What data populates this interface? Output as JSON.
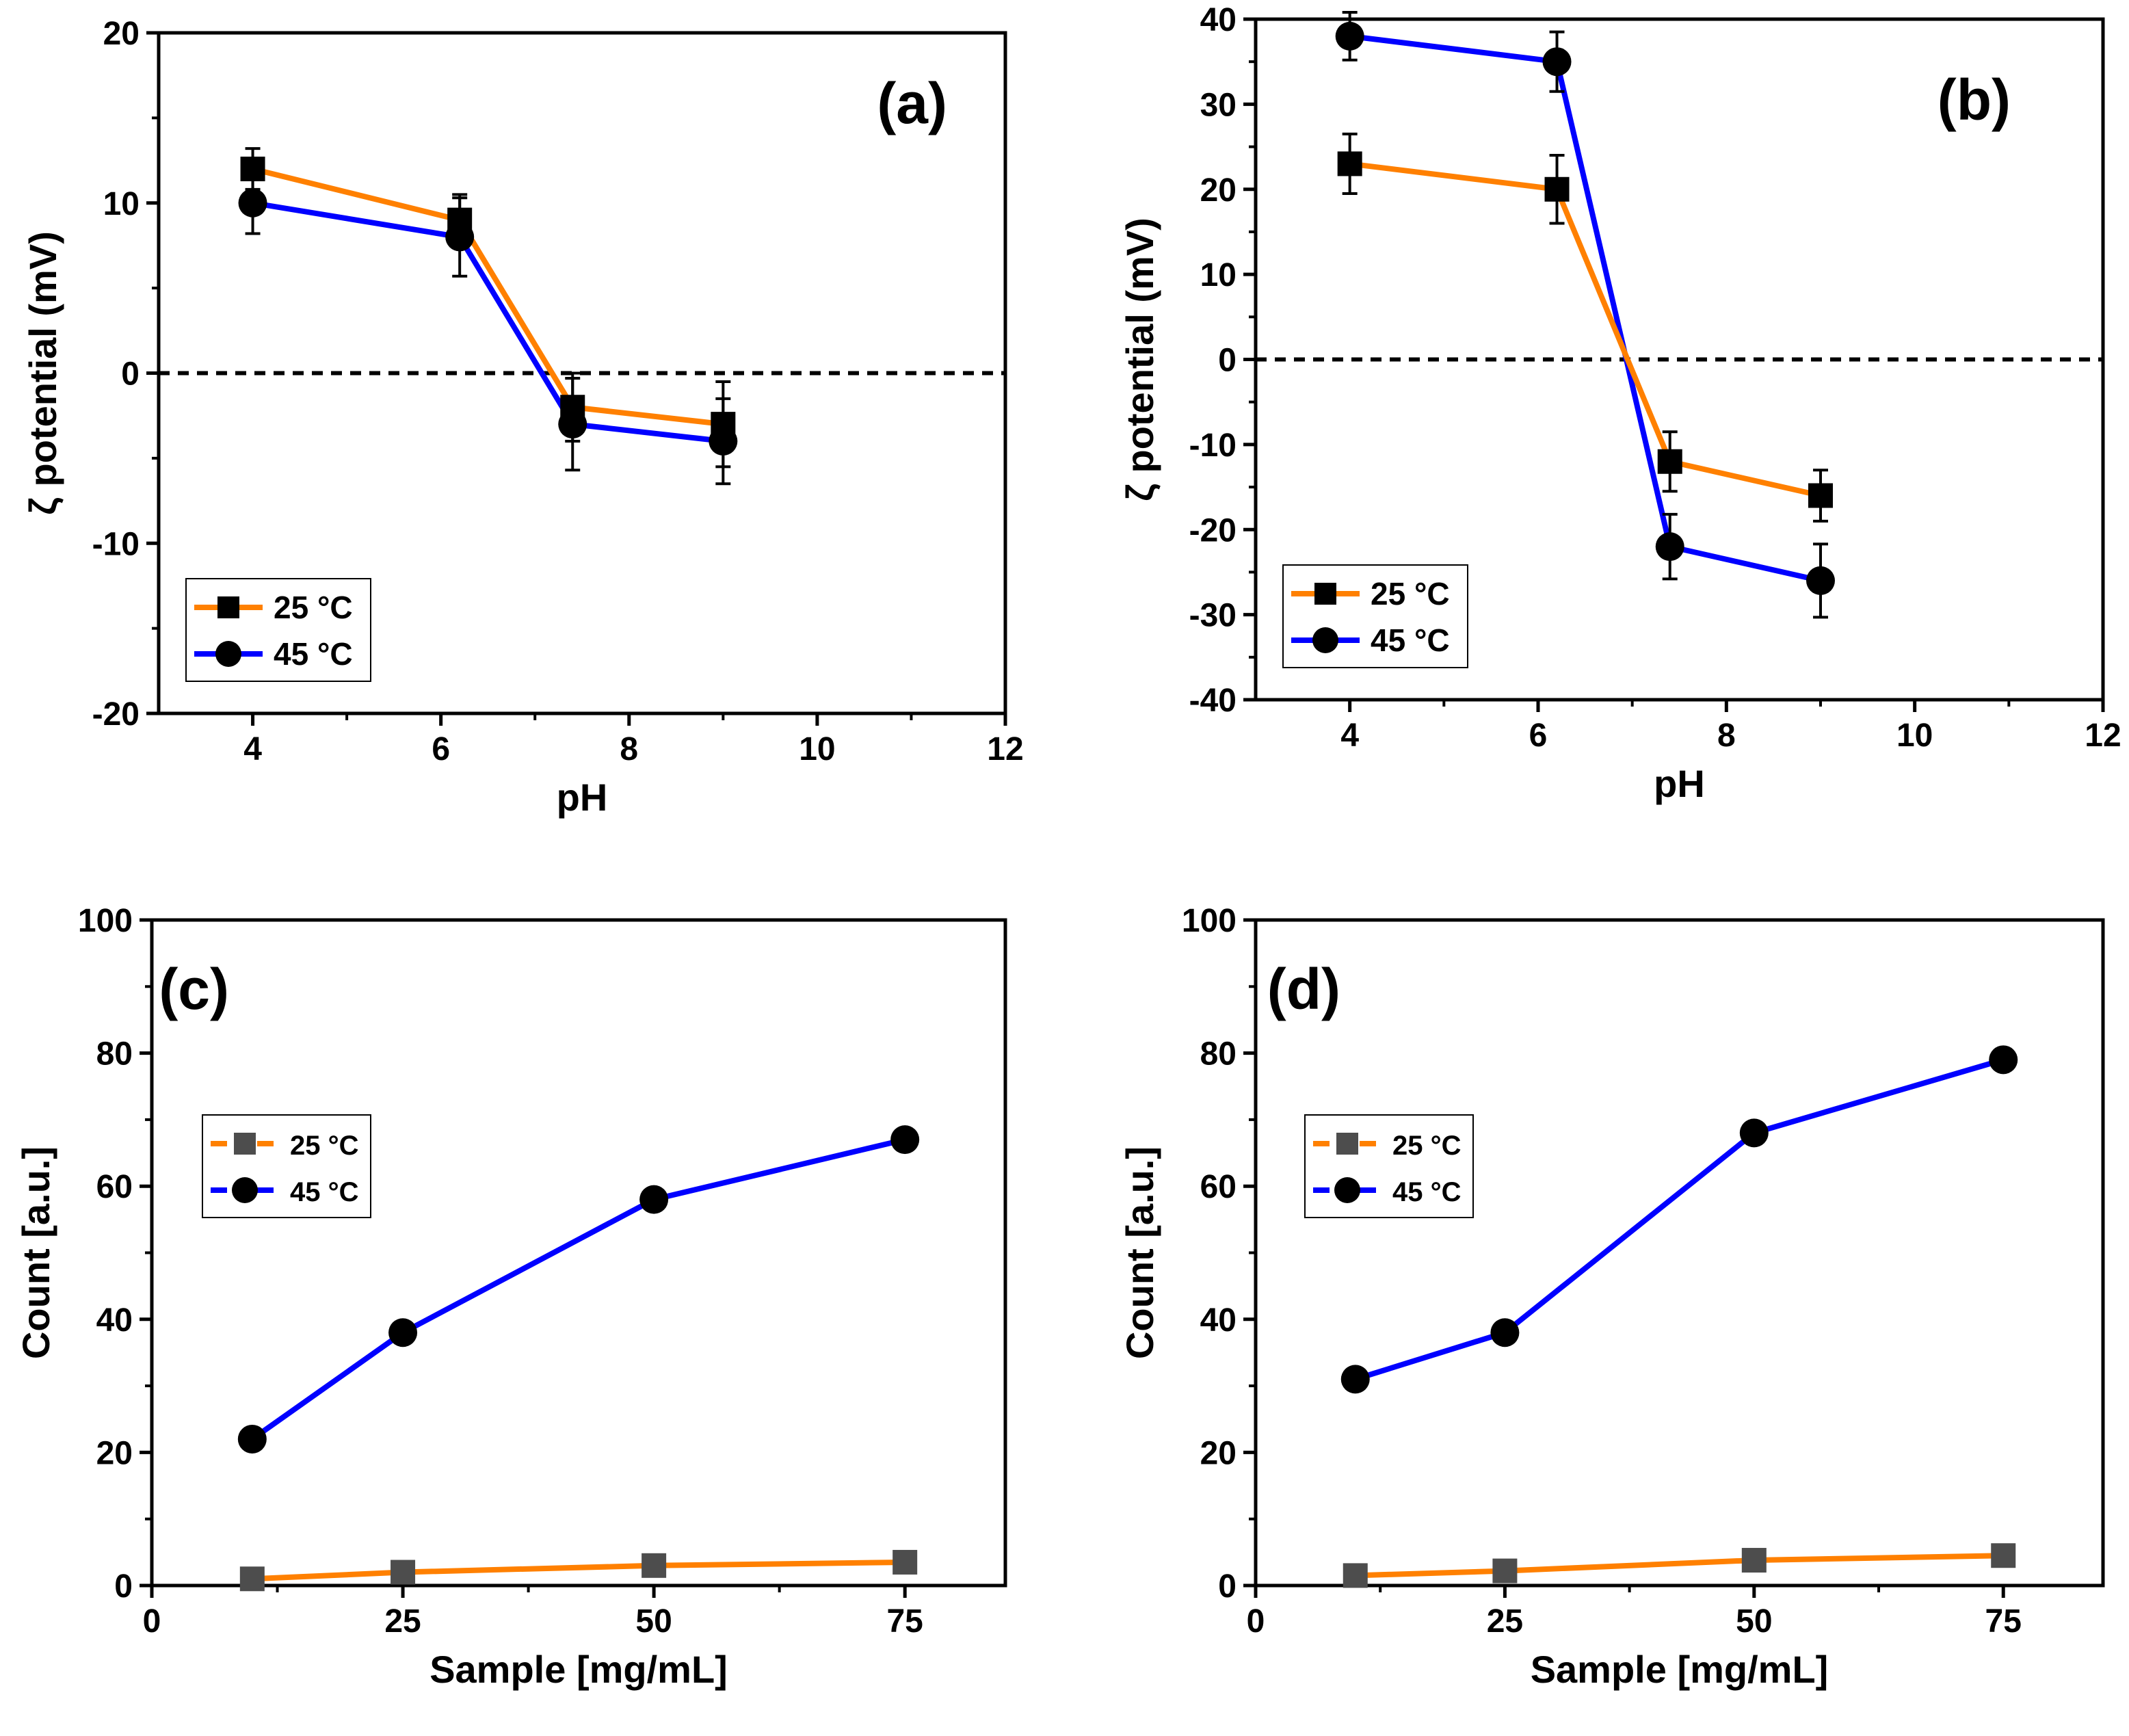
{
  "colors": {
    "series_25": "#FF8000",
    "series_45": "#0000FF",
    "marker_25_ab": "#000000",
    "marker_25_cd": "#4D4D4D",
    "marker_45": "#000000",
    "axis": "#000000"
  },
  "chart_data": [
    {
      "id": "a",
      "type": "line",
      "panel_label": "(a)",
      "xlabel": "pH",
      "ylabel": "ζ potential (mV)",
      "xlim": [
        3,
        12
      ],
      "ylim": [
        -20,
        20
      ],
      "xticks": [
        4,
        6,
        8,
        10,
        12
      ],
      "yticks": [
        -20,
        -10,
        0,
        10,
        20
      ],
      "zero_line": true,
      "legend_position": "bottom-left",
      "series": [
        {
          "name": "25 °C",
          "marker": "square",
          "x": [
            4,
            6.2,
            7.4,
            9
          ],
          "values": [
            12,
            9,
            -2,
            -3
          ],
          "errors": [
            1.2,
            1.5,
            2.0,
            2.5
          ]
        },
        {
          "name": "45 °C",
          "marker": "circle",
          "x": [
            4,
            6.2,
            7.4,
            9
          ],
          "values": [
            10,
            8,
            -3,
            -4
          ],
          "errors": [
            1.8,
            2.3,
            2.7,
            2.5
          ]
        }
      ]
    },
    {
      "id": "b",
      "type": "line",
      "panel_label": "(b)",
      "xlabel": "pH",
      "ylabel": "ζ potential (mV)",
      "xlim": [
        3,
        12
      ],
      "ylim": [
        -40,
        40
      ],
      "xticks": [
        4,
        6,
        8,
        10,
        12
      ],
      "yticks": [
        -40,
        -30,
        -20,
        -10,
        0,
        10,
        20,
        30,
        40
      ],
      "zero_line": true,
      "legend_position": "bottom-left",
      "series": [
        {
          "name": "25 °C",
          "marker": "square",
          "x": [
            4,
            6.2,
            7.4,
            9
          ],
          "values": [
            23,
            20,
            -12,
            -16
          ],
          "errors": [
            3.5,
            4.0,
            3.5,
            3.0
          ]
        },
        {
          "name": "45 °C",
          "marker": "circle",
          "x": [
            4,
            6.2,
            7.4,
            9
          ],
          "values": [
            38,
            35,
            -22,
            -26
          ],
          "errors": [
            2.8,
            3.5,
            3.8,
            4.3
          ]
        }
      ]
    },
    {
      "id": "c",
      "type": "line",
      "panel_label": "(c)",
      "xlabel": "Sample [mg/mL]",
      "ylabel": "Count [a.u.]",
      "xlim": [
        0,
        85
      ],
      "ylim": [
        0,
        100
      ],
      "xticks": [
        0,
        25,
        50,
        75
      ],
      "yticks": [
        0,
        20,
        40,
        60,
        80,
        100
      ],
      "zero_line": false,
      "legend_position": "middle-left",
      "series": [
        {
          "name": "25 °C",
          "marker": "square",
          "x": [
            10,
            25,
            50,
            75
          ],
          "values": [
            1,
            2,
            3,
            3.5
          ]
        },
        {
          "name": "45 °C",
          "marker": "circle",
          "x": [
            10,
            25,
            50,
            75
          ],
          "values": [
            22,
            38,
            58,
            67
          ]
        }
      ]
    },
    {
      "id": "d",
      "type": "line",
      "panel_label": "(d)",
      "xlabel": "Sample [mg/mL]",
      "ylabel": "Count [a.u.]",
      "xlim": [
        0,
        85
      ],
      "ylim": [
        0,
        100
      ],
      "xticks": [
        0,
        25,
        50,
        75
      ],
      "yticks": [
        0,
        20,
        40,
        60,
        80,
        100
      ],
      "zero_line": false,
      "legend_position": "middle-left",
      "series": [
        {
          "name": "25 °C",
          "marker": "square",
          "x": [
            10,
            25,
            50,
            75
          ],
          "values": [
            1.5,
            2.2,
            3.8,
            4.5
          ]
        },
        {
          "name": "45 °C",
          "marker": "circle",
          "x": [
            10,
            25,
            50,
            75
          ],
          "values": [
            31,
            38,
            68,
            79
          ]
        }
      ]
    }
  ]
}
